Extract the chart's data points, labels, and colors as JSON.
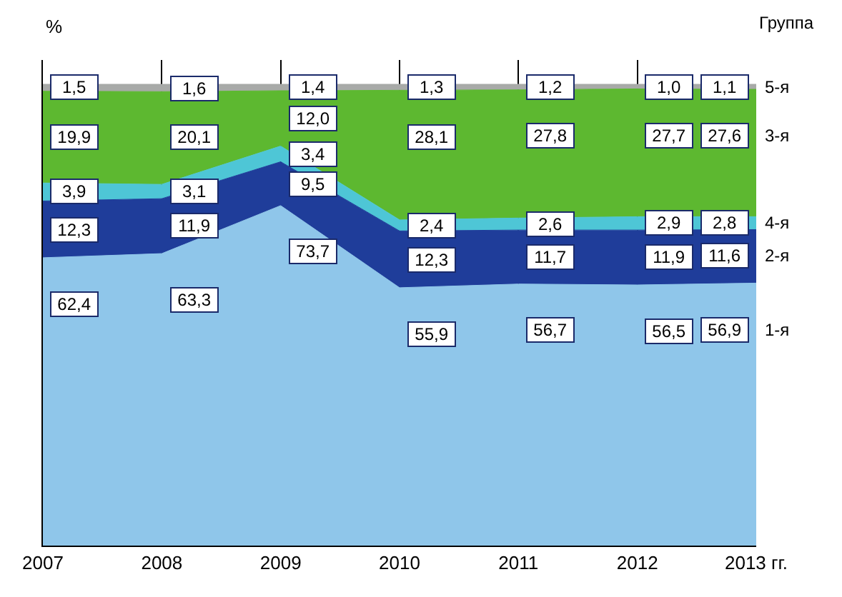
{
  "chart_data": {
    "type": "area",
    "stacked": true,
    "ylabel": "%",
    "legend_title": "Группа",
    "categories": [
      "2007",
      "2008",
      "2009",
      "2010",
      "2011",
      "2012",
      "2013 гг."
    ],
    "tick_labels": "x",
    "grid": "x",
    "legend": false,
    "series": [
      {
        "name": "1-я",
        "color": "#8fc6ea",
        "values": [
          62.4,
          63.3,
          73.7,
          55.9,
          56.7,
          56.5,
          56.9
        ],
        "value_labels": [
          "62,4",
          "63,3",
          "73,7",
          "55,9",
          "56,7",
          "56,5",
          "56,9"
        ]
      },
      {
        "name": "2-я",
        "color": "#1f3d9a",
        "values": [
          12.3,
          11.9,
          9.5,
          12.3,
          11.7,
          11.9,
          11.6
        ],
        "value_labels": [
          "12,3",
          "11,9",
          "9,5",
          "12,3",
          "11,7",
          "11,9",
          "11,6"
        ]
      },
      {
        "name": "4-я",
        "color": "#4ec6d6",
        "values": [
          3.9,
          3.1,
          3.4,
          2.4,
          2.6,
          2.9,
          2.8
        ],
        "value_labels": [
          "3,9",
          "3,1",
          "3,4",
          "2,4",
          "2,6",
          "2,9",
          "2,8"
        ]
      },
      {
        "name": "3-я",
        "color": "#5db830",
        "values": [
          19.9,
          20.1,
          12.0,
          28.1,
          27.8,
          27.7,
          27.6
        ],
        "value_labels": [
          "19,9",
          "20,1",
          "12,0",
          "28,1",
          "27,8",
          "27,7",
          "27,6"
        ]
      },
      {
        "name": "5-я",
        "color": "#a8aaa8",
        "values": [
          1.5,
          1.6,
          1.4,
          1.3,
          1.2,
          1.0,
          1.1
        ],
        "value_labels": [
          "1,5",
          "1,6",
          "1,4",
          "1,3",
          "1,2",
          "1,0",
          "1,1"
        ]
      }
    ]
  }
}
